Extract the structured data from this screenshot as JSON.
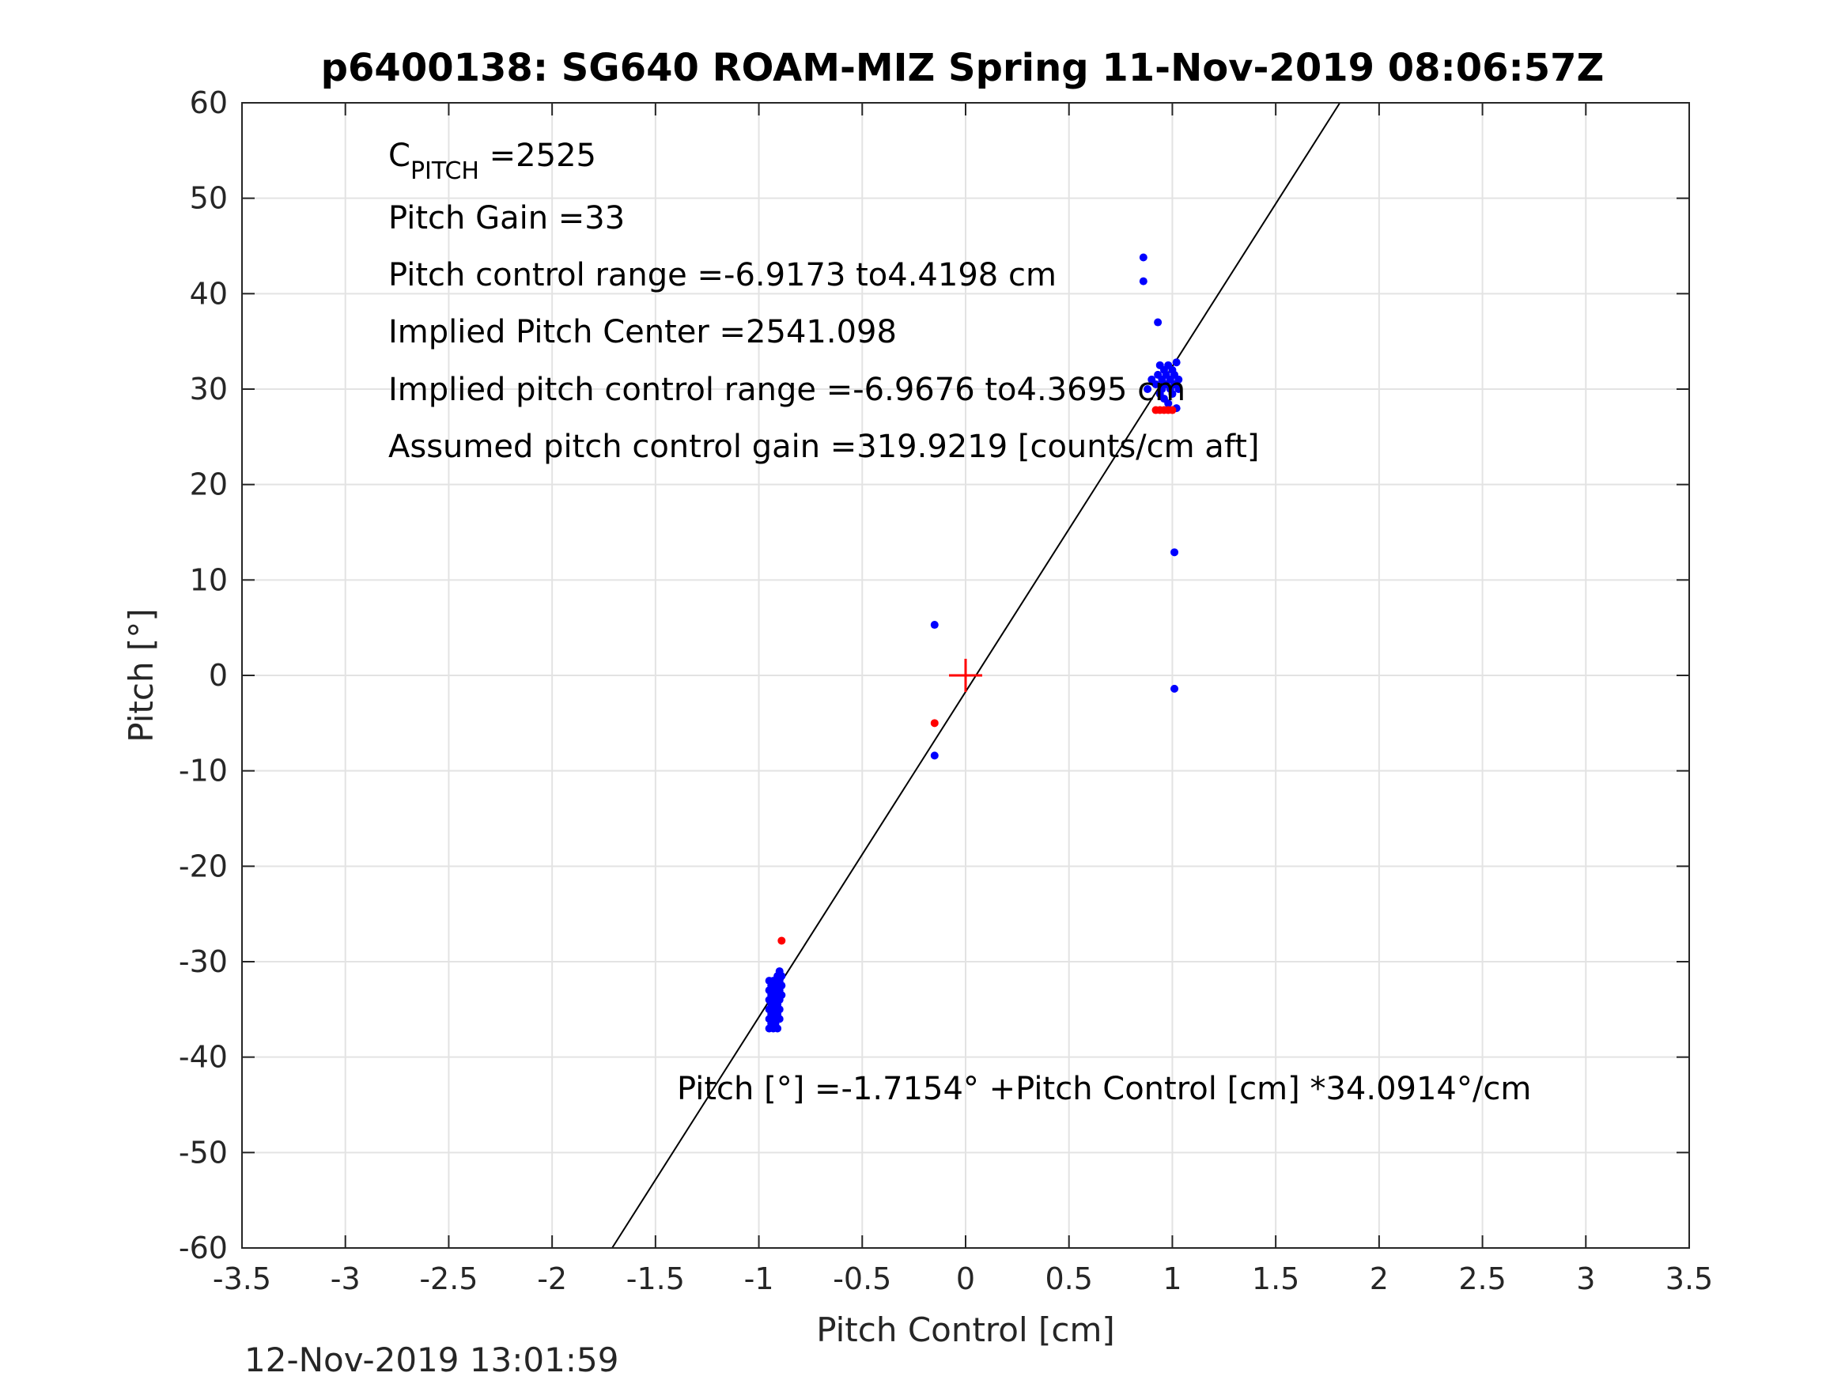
{
  "figure": {
    "title": "p6400138: SG640 ROAM-MIZ Spring 11-Nov-2019 08:06:57Z",
    "timestamp": "12-Nov-2019 13:01:59",
    "annotations": {
      "cpitch_base": "C",
      "cpitch_sub": "PITCH",
      "cpitch_value": " =2525",
      "pitch_gain": "Pitch Gain =33",
      "control_range": "Pitch control range =-6.9173 to4.4198 cm",
      "implied_center": "Implied Pitch Center =2541.098",
      "implied_range": "Implied pitch control range =-6.9676 to4.3695 cm",
      "assumed_gain": "Assumed pitch control gain =319.9219 [counts/cm aft]",
      "fit_equation": "Pitch [°] =-1.7154° +Pitch Control [cm] *34.0914°/cm"
    }
  },
  "chart_data": {
    "type": "scatter",
    "title": "p6400138: SG640 ROAM-MIZ Spring 11-Nov-2019 08:06:57Z",
    "xlabel": "Pitch Control [cm]",
    "ylabel": "Pitch [°]",
    "xlim": [
      -3.5,
      3.5
    ],
    "ylim": [
      -60,
      60
    ],
    "xticks": [
      "-3.5",
      "-3",
      "-2.5",
      "-2",
      "-1.5",
      "-1",
      "-0.5",
      "0",
      "0.5",
      "1",
      "1.5",
      "2",
      "2.5",
      "3",
      "3.5"
    ],
    "yticks": [
      "60",
      "50",
      "40",
      "30",
      "20",
      "10",
      "0",
      "-10",
      "-20",
      "-30",
      "-40",
      "-50",
      "-60"
    ],
    "grid": true,
    "fit_line": {
      "intercept": -1.7154,
      "slope": 34.0914
    },
    "center_marker": {
      "x": 0,
      "y": 0,
      "color": "#ff0000"
    },
    "series": [
      {
        "color": "#0000ff",
        "points": [
          [
            -0.95,
            -32.0
          ],
          [
            -0.95,
            -33.0
          ],
          [
            -0.95,
            -34.0
          ],
          [
            -0.95,
            -35.0
          ],
          [
            -0.95,
            -36.0
          ],
          [
            -0.95,
            -37.0
          ],
          [
            -0.94,
            -32.5
          ],
          [
            -0.94,
            -33.5
          ],
          [
            -0.94,
            -34.5
          ],
          [
            -0.94,
            -35.5
          ],
          [
            -0.94,
            -36.5
          ],
          [
            -0.93,
            -32.0
          ],
          [
            -0.93,
            -33.0
          ],
          [
            -0.93,
            -34.0
          ],
          [
            -0.93,
            -35.0
          ],
          [
            -0.93,
            -36.0
          ],
          [
            -0.93,
            -37.0
          ],
          [
            -0.92,
            -32.5
          ],
          [
            -0.92,
            -33.5
          ],
          [
            -0.92,
            -34.5
          ],
          [
            -0.92,
            -35.5
          ],
          [
            -0.92,
            -36.5
          ],
          [
            -0.91,
            -31.5
          ],
          [
            -0.91,
            -32.5
          ],
          [
            -0.91,
            -33.5
          ],
          [
            -0.91,
            -34.5
          ],
          [
            -0.91,
            -35.5
          ],
          [
            -0.91,
            -37.0
          ],
          [
            -0.9,
            -31.0
          ],
          [
            -0.9,
            -32.0
          ],
          [
            -0.9,
            -33.0
          ],
          [
            -0.9,
            -34.0
          ],
          [
            -0.9,
            -35.0
          ],
          [
            -0.9,
            -36.0
          ],
          [
            -0.89,
            -31.5
          ],
          [
            -0.89,
            -32.5
          ],
          [
            -0.89,
            -33.5
          ],
          [
            -0.15,
            5.3
          ],
          [
            -0.15,
            -8.4
          ],
          [
            0.86,
            43.8
          ],
          [
            0.86,
            41.3
          ],
          [
            0.93,
            37.0
          ],
          [
            0.88,
            30.0
          ],
          [
            0.9,
            31.0
          ],
          [
            0.92,
            30.5
          ],
          [
            0.93,
            31.5
          ],
          [
            0.94,
            29.5
          ],
          [
            0.94,
            32.5
          ],
          [
            0.95,
            30.0
          ],
          [
            0.95,
            31.0
          ],
          [
            0.96,
            32.0
          ],
          [
            0.96,
            29.0
          ],
          [
            0.97,
            30.5
          ],
          [
            0.97,
            31.5
          ],
          [
            0.98,
            28.5
          ],
          [
            0.98,
            32.5
          ],
          [
            0.99,
            30.0
          ],
          [
            0.99,
            31.0
          ],
          [
            1.0,
            29.5
          ],
          [
            1.0,
            32.0
          ],
          [
            1.01,
            30.5
          ],
          [
            1.01,
            31.5
          ],
          [
            1.02,
            32.8
          ],
          [
            1.02,
            28.0
          ],
          [
            1.03,
            30.0
          ],
          [
            1.03,
            31.0
          ],
          [
            1.01,
            12.9
          ],
          [
            1.01,
            -1.4
          ]
        ]
      },
      {
        "color": "#ff0000",
        "points": [
          [
            -0.89,
            -27.8
          ],
          [
            -0.15,
            -5.0
          ],
          [
            0.92,
            27.8
          ],
          [
            0.94,
            27.8
          ],
          [
            0.96,
            27.8
          ],
          [
            0.98,
            27.8
          ],
          [
            1.0,
            27.8
          ]
        ]
      }
    ]
  }
}
